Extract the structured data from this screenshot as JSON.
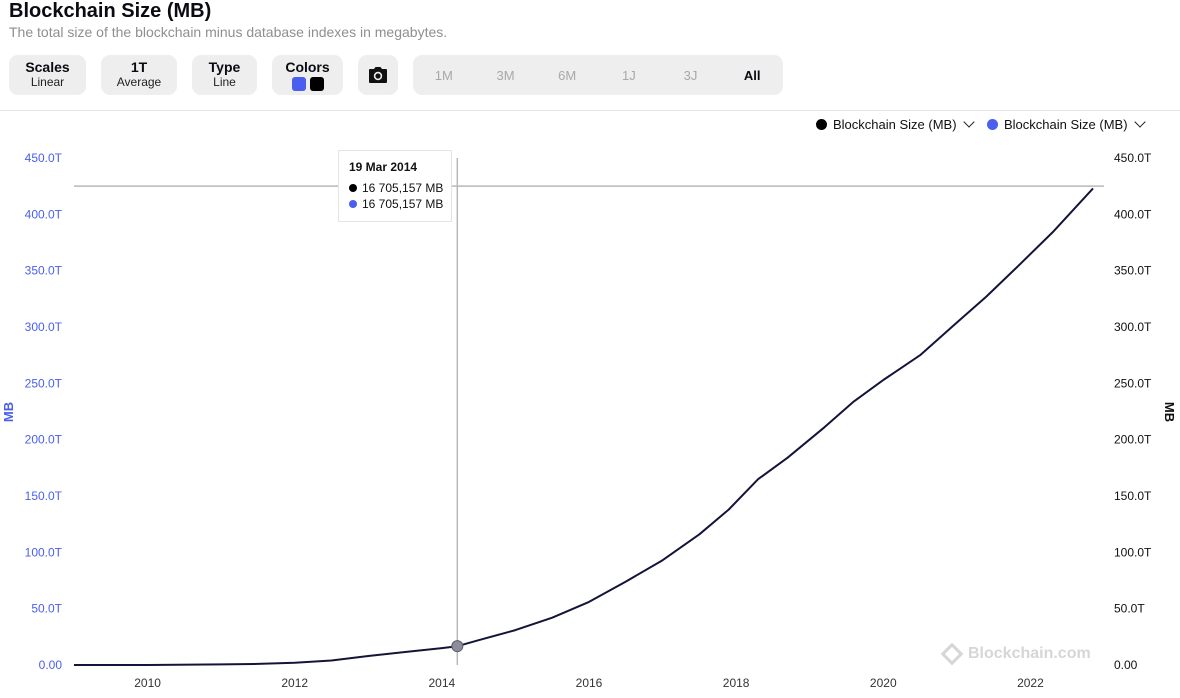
{
  "header": {
    "title": "Blockchain Size (MB)",
    "subtitle": "The total size of the blockchain minus database indexes in megabytes."
  },
  "controls": {
    "scales": {
      "label": "Scales",
      "value": "Linear"
    },
    "period": {
      "label": "1T",
      "value": "Average"
    },
    "type": {
      "label": "Type",
      "value": "Line"
    },
    "colors": {
      "label": "Colors",
      "swatches": [
        "#4a5ff0",
        "#000000"
      ]
    },
    "camera_icon": "camera-icon"
  },
  "ranges": [
    {
      "label": "1M",
      "active": false
    },
    {
      "label": "3M",
      "active": false
    },
    {
      "label": "6M",
      "active": false
    },
    {
      "label": "1J",
      "active": false
    },
    {
      "label": "3J",
      "active": false
    },
    {
      "label": "All",
      "active": true
    }
  ],
  "legend": [
    {
      "label": "Blockchain Size (MB)",
      "color": "#000000"
    },
    {
      "label": "Blockchain Size (MB)",
      "color": "#4a5ff0"
    }
  ],
  "tooltip": {
    "date": "19 Mar 2014",
    "rows": [
      {
        "color": "#000000",
        "text": "16 705,157 MB"
      },
      {
        "color": "#4a5ff0",
        "text": "16 705,157 MB"
      }
    ]
  },
  "watermark": "Blockchain.com",
  "colors": {
    "left_axis": "#4a5ff0",
    "right_axis": "#111111",
    "line": "#14143a"
  },
  "chart_data": {
    "type": "line",
    "title": "Blockchain Size (MB)",
    "ylabel_left": "MB",
    "ylabel_right": "MB",
    "xlim": [
      2009.0,
      2023.0
    ],
    "ylim": [
      0,
      450000000
    ],
    "x_ticks": [
      2010,
      2012,
      2014,
      2016,
      2018,
      2020,
      2022
    ],
    "y_ticks": [
      0,
      50000000,
      100000000,
      150000000,
      200000000,
      250000000,
      300000000,
      350000000,
      400000000,
      450000000
    ],
    "y_tick_labels": [
      "0.00",
      "50.0T",
      "100.0T",
      "150.0T",
      "200.0T",
      "250.0T",
      "300.0T",
      "350.0T",
      "400.0T",
      "450.0T"
    ],
    "crosshair": {
      "x": 2014.21,
      "y": 16705157,
      "horizontal_y": 425000000
    },
    "series": [
      {
        "name": "Blockchain Size (MB)",
        "x": [
          2009.0,
          2010.0,
          2011.0,
          2011.5,
          2012.0,
          2012.5,
          2013.0,
          2013.5,
          2014.0,
          2014.21,
          2014.5,
          2015.0,
          2015.5,
          2016.0,
          2016.5,
          2017.0,
          2017.5,
          2017.9,
          2018.3,
          2018.7,
          2019.2,
          2019.6,
          2020.0,
          2020.5,
          2021.0,
          2021.4,
          2021.8,
          2022.3,
          2022.85
        ],
        "values": [
          0,
          0,
          500000,
          1000000,
          2000000,
          4000000,
          8000000,
          11500000,
          15000000,
          16705157,
          22000000,
          31000000,
          42000000,
          56000000,
          74000000,
          93000000,
          116000000,
          138000000,
          165000000,
          184000000,
          211000000,
          234000000,
          253000000,
          275000000,
          304000000,
          327000000,
          352000000,
          384000000,
          423000000
        ]
      }
    ]
  }
}
